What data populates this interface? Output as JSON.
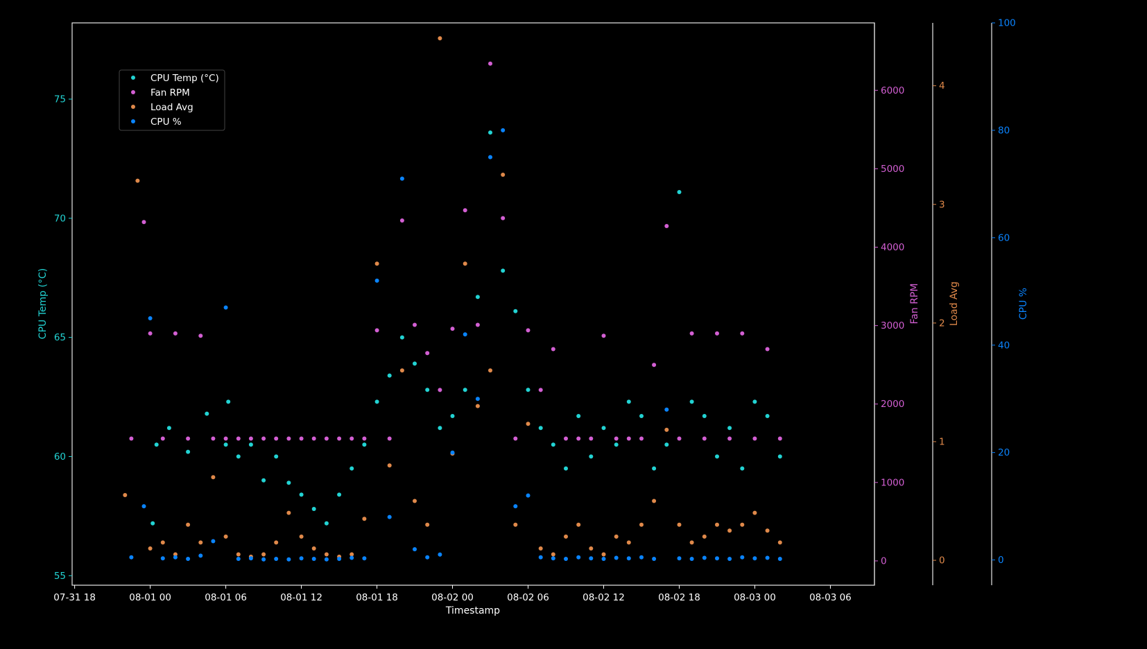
{
  "chart_data": {
    "type": "scatter",
    "title": "",
    "xlabel": "Timestamp",
    "x_ticks": [
      "07-31 18",
      "08-01 00",
      "08-01 06",
      "08-01 12",
      "08-01 18",
      "08-02 00",
      "08-02 06",
      "08-02 12",
      "08-02 18",
      "08-03 00",
      "08-03 06"
    ],
    "x_range_hours": [
      -6.2,
      57.5
    ],
    "grid": false,
    "legend_position": "upper-left",
    "axes": [
      {
        "label": "CPU Temp (°C)",
        "side": "left",
        "color": "#22d3d3",
        "ylim": [
          54.6,
          78.2
        ],
        "ticks": [
          55,
          60,
          65,
          70,
          75
        ]
      },
      {
        "label": "Fan RPM",
        "side": "right",
        "color": "#d35fd3",
        "ylim": [
          -310,
          6860
        ],
        "ticks": [
          0,
          1000,
          2000,
          3000,
          4000,
          5000,
          6000
        ]
      },
      {
        "label": "Load Avg",
        "side": "right",
        "color": "#e0894a",
        "ylim": [
          -0.21,
          4.53
        ],
        "ticks": [
          0,
          1,
          2,
          3,
          4
        ]
      },
      {
        "label": "CPU %",
        "side": "right",
        "color": "#0a84ff",
        "ylim": [
          -4.7,
          100
        ],
        "ticks": [
          0,
          20,
          40,
          60,
          80,
          100
        ]
      }
    ],
    "series": [
      {
        "name": "CPU Temp (°C)",
        "axis": 0,
        "color": "#22d3d3",
        "points": [
          [
            0.2,
            57.2
          ],
          [
            0.5,
            60.5
          ],
          [
            1.5,
            61.2
          ],
          [
            3,
            60.2
          ],
          [
            4.5,
            61.8
          ],
          [
            6,
            60.5
          ],
          [
            6.2,
            62.3
          ],
          [
            7,
            60
          ],
          [
            8,
            60.5
          ],
          [
            9,
            59
          ],
          [
            10,
            60
          ],
          [
            11,
            58.9
          ],
          [
            12,
            58.4
          ],
          [
            13,
            57.8
          ],
          [
            14,
            57.2
          ],
          [
            15,
            58.4
          ],
          [
            16,
            59.5
          ],
          [
            17,
            60.5
          ],
          [
            18,
            62.3
          ],
          [
            19,
            63.4
          ],
          [
            20,
            65
          ],
          [
            21,
            63.9
          ],
          [
            22,
            62.8
          ],
          [
            23,
            61.2
          ],
          [
            24,
            61.7
          ],
          [
            25,
            62.8
          ],
          [
            26,
            66.7
          ],
          [
            27,
            73.6
          ],
          [
            28,
            67.8
          ],
          [
            29,
            66.1
          ],
          [
            30,
            62.8
          ],
          [
            31,
            61.2
          ],
          [
            32,
            60.5
          ],
          [
            33,
            59.5
          ],
          [
            34,
            61.7
          ],
          [
            35,
            60
          ],
          [
            36,
            61.2
          ],
          [
            37,
            60.5
          ],
          [
            38,
            62.3
          ],
          [
            39,
            61.7
          ],
          [
            40,
            59.5
          ],
          [
            41,
            60.5
          ],
          [
            42,
            71.1
          ],
          [
            43,
            62.3
          ],
          [
            44,
            61.7
          ],
          [
            45,
            60
          ],
          [
            46,
            61.2
          ],
          [
            47,
            59.5
          ],
          [
            48,
            62.3
          ],
          [
            49,
            61.7
          ],
          [
            50,
            60
          ]
        ]
      },
      {
        "name": "Fan RPM",
        "axis": 1,
        "color": "#d35fd3",
        "points": [
          [
            -1.5,
            1560
          ],
          [
            -0.5,
            4320
          ],
          [
            0,
            2900
          ],
          [
            1,
            1560
          ],
          [
            2,
            2900
          ],
          [
            3,
            1560
          ],
          [
            4,
            2870
          ],
          [
            5,
            1560
          ],
          [
            6,
            1560
          ],
          [
            7,
            1560
          ],
          [
            8,
            1560
          ],
          [
            9,
            1560
          ],
          [
            10,
            1560
          ],
          [
            11,
            1560
          ],
          [
            12,
            1560
          ],
          [
            13,
            1560
          ],
          [
            14,
            1560
          ],
          [
            15,
            1560
          ],
          [
            16,
            1560
          ],
          [
            17,
            1560
          ],
          [
            18,
            2940
          ],
          [
            19,
            1560
          ],
          [
            20,
            4340
          ],
          [
            21,
            3010
          ],
          [
            22,
            2650
          ],
          [
            23,
            2180
          ],
          [
            24,
            2960
          ],
          [
            25,
            4470
          ],
          [
            26,
            3010
          ],
          [
            27,
            6340
          ],
          [
            28,
            4370
          ],
          [
            29,
            1560
          ],
          [
            30,
            2940
          ],
          [
            31,
            2180
          ],
          [
            32,
            2700
          ],
          [
            33,
            1560
          ],
          [
            34,
            1560
          ],
          [
            35,
            1560
          ],
          [
            36,
            2870
          ],
          [
            37,
            1560
          ],
          [
            38,
            1560
          ],
          [
            39,
            1560
          ],
          [
            40,
            2500
          ],
          [
            41,
            4270
          ],
          [
            42,
            1560
          ],
          [
            43,
            2900
          ],
          [
            44,
            1560
          ],
          [
            45,
            2900
          ],
          [
            46,
            1560
          ],
          [
            47,
            2900
          ],
          [
            48,
            1560
          ],
          [
            49,
            2700
          ],
          [
            50,
            1560
          ]
        ]
      },
      {
        "name": "Load Avg",
        "axis": 2,
        "color": "#e0894a",
        "points": [
          [
            -2,
            0.55
          ],
          [
            -1,
            3.2
          ],
          [
            0,
            0.1
          ],
          [
            1,
            0.15
          ],
          [
            2,
            0.05
          ],
          [
            3,
            0.3
          ],
          [
            4,
            0.15
          ],
          [
            5,
            0.7
          ],
          [
            6,
            0.2
          ],
          [
            7,
            0.05
          ],
          [
            8,
            0.03
          ],
          [
            9,
            0.05
          ],
          [
            10,
            0.15
          ],
          [
            11,
            0.4
          ],
          [
            12,
            0.2
          ],
          [
            13,
            0.1
          ],
          [
            14,
            0.05
          ],
          [
            15,
            0.03
          ],
          [
            16,
            0.05
          ],
          [
            17,
            0.35
          ],
          [
            18,
            2.5
          ],
          [
            19,
            0.8
          ],
          [
            20,
            1.6
          ],
          [
            21,
            0.5
          ],
          [
            22,
            0.3
          ],
          [
            23,
            4.4
          ],
          [
            24,
            0.9
          ],
          [
            25,
            2.5
          ],
          [
            26,
            1.3
          ],
          [
            27,
            1.6
          ],
          [
            28,
            3.25
          ],
          [
            29,
            0.3
          ],
          [
            30,
            1.15
          ],
          [
            31,
            0.1
          ],
          [
            32,
            0.05
          ],
          [
            33,
            0.2
          ],
          [
            34,
            0.3
          ],
          [
            35,
            0.1
          ],
          [
            36,
            0.05
          ],
          [
            37,
            0.2
          ],
          [
            38,
            0.15
          ],
          [
            39,
            0.3
          ],
          [
            40,
            0.5
          ],
          [
            41,
            1.1
          ],
          [
            42,
            0.3
          ],
          [
            43,
            0.15
          ],
          [
            44,
            0.2
          ],
          [
            45,
            0.3
          ],
          [
            46,
            0.25
          ],
          [
            47,
            0.3
          ],
          [
            48,
            0.4
          ],
          [
            49,
            0.25
          ],
          [
            50,
            0.15
          ]
        ]
      },
      {
        "name": "CPU %",
        "axis": 3,
        "color": "#0a84ff",
        "points": [
          [
            -1.5,
            0.5
          ],
          [
            -0.5,
            10
          ],
          [
            0,
            45
          ],
          [
            1,
            0.3
          ],
          [
            2,
            0.5
          ],
          [
            3,
            0.2
          ],
          [
            4,
            0.8
          ],
          [
            5,
            3.5
          ],
          [
            6,
            47
          ],
          [
            7,
            0.2
          ],
          [
            8,
            0.3
          ],
          [
            9,
            0.1
          ],
          [
            10,
            0.2
          ],
          [
            11,
            0.1
          ],
          [
            12,
            0.3
          ],
          [
            13,
            0.2
          ],
          [
            14,
            0.1
          ],
          [
            15,
            0.2
          ],
          [
            16,
            0.4
          ],
          [
            17,
            0.3
          ],
          [
            18,
            52
          ],
          [
            19,
            8
          ],
          [
            20,
            71
          ],
          [
            21,
            2
          ],
          [
            22,
            0.5
          ],
          [
            23,
            1
          ],
          [
            24,
            20
          ],
          [
            25,
            42
          ],
          [
            26,
            30
          ],
          [
            27,
            75
          ],
          [
            28,
            80
          ],
          [
            29,
            10
          ],
          [
            30,
            12
          ],
          [
            31,
            0.5
          ],
          [
            32,
            0.3
          ],
          [
            33,
            0.2
          ],
          [
            34,
            0.5
          ],
          [
            35,
            0.3
          ],
          [
            36,
            0.2
          ],
          [
            37,
            0.4
          ],
          [
            38,
            0.3
          ],
          [
            39,
            0.5
          ],
          [
            40,
            0.2
          ],
          [
            41,
            28
          ],
          [
            42,
            0.3
          ],
          [
            43,
            0.2
          ],
          [
            44,
            0.4
          ],
          [
            45,
            0.3
          ],
          [
            46,
            0.2
          ],
          [
            47,
            0.5
          ],
          [
            48,
            0.3
          ],
          [
            49,
            0.4
          ],
          [
            50,
            0.2
          ]
        ]
      }
    ]
  }
}
